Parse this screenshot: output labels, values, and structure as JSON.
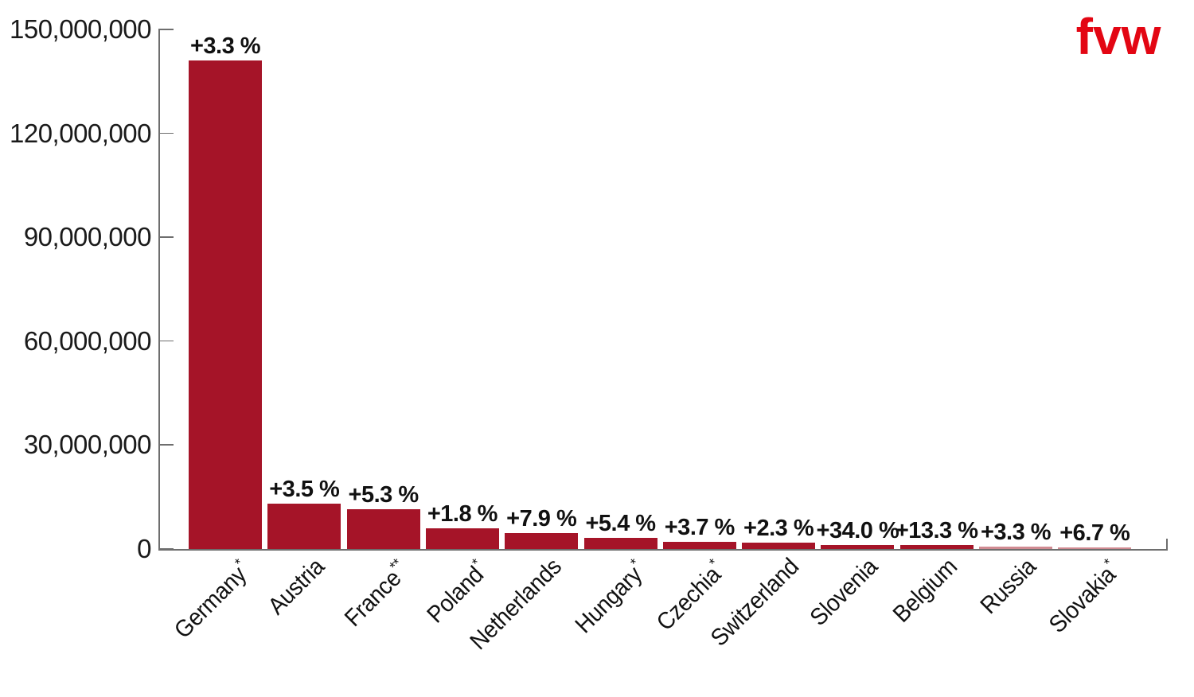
{
  "logo": {
    "text": "fvw",
    "color": "#e30613"
  },
  "chart_data": {
    "type": "bar",
    "title": "",
    "xlabel": "",
    "ylabel": "",
    "categories": [
      "Germany",
      "Austria",
      "France",
      "Poland",
      "Netherlands",
      "Hungary",
      "Czechia",
      "Switzerland",
      "Slovenia",
      "Belgium",
      "Russia",
      "Slovakia"
    ],
    "category_notes": [
      "*",
      "",
      "**",
      "*",
      "",
      "*",
      "*",
      "",
      "",
      "",
      "",
      "*"
    ],
    "values": [
      141000000,
      13100000,
      11600000,
      6000000,
      4700000,
      3200000,
      2000000,
      1800000,
      1200000,
      1100000,
      650000,
      300000
    ],
    "growth_labels": [
      "+3.3 %",
      "+3.5 %",
      "+5.3 %",
      "+1.8 %",
      "+7.9 %",
      "+5.4 %",
      "+3.7 %",
      "+2.3 %",
      "+34.0 %",
      "+13.3 %",
      "+3.3 %",
      "+6.7 %"
    ],
    "ylim": [
      0,
      150000000
    ],
    "yticks": [
      0,
      30000000,
      60000000,
      90000000,
      120000000,
      150000000
    ],
    "ytick_labels": [
      "0",
      "30,000,000",
      "60,000,000",
      "90,000,000",
      "120,000,000",
      "150,000,000"
    ],
    "grid": false,
    "legend": null,
    "bar_color": "#a51428",
    "bar_color_light": "#d08b92",
    "axis_color": "#6e6e6e",
    "text_color": "#1a1a1a"
  }
}
